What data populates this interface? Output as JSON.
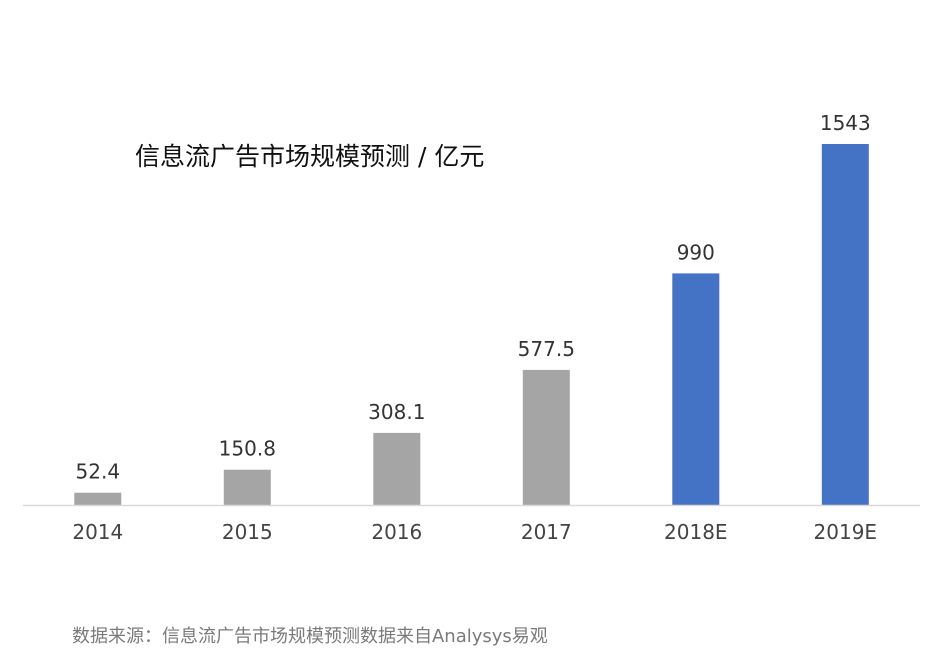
{
  "chart_data": {
    "type": "bar",
    "title": "信息流广告市场规模预测 / 亿元",
    "xlabel": "",
    "ylabel": "",
    "categories": [
      "2014",
      "2015",
      "2016",
      "2017",
      "2018E",
      "2019E"
    ],
    "values": [
      52.4,
      150.8,
      308.1,
      577.5,
      990,
      1543
    ],
    "data_labels": [
      "52.4",
      "150.8",
      "308.1",
      "577.5",
      "990",
      "1543"
    ],
    "ylim": [
      0,
      1543
    ],
    "grid": false,
    "legend": "none",
    "colors": {
      "actual": "#a5a5a5",
      "estimate": "#4472c4",
      "axis": "#d9d9d9"
    },
    "bar_color_group": [
      "actual",
      "actual",
      "actual",
      "actual",
      "estimate",
      "estimate"
    ]
  },
  "footer": {
    "source": "数据来源：信息流广告市场规模预测数据来自Analysys易观"
  }
}
